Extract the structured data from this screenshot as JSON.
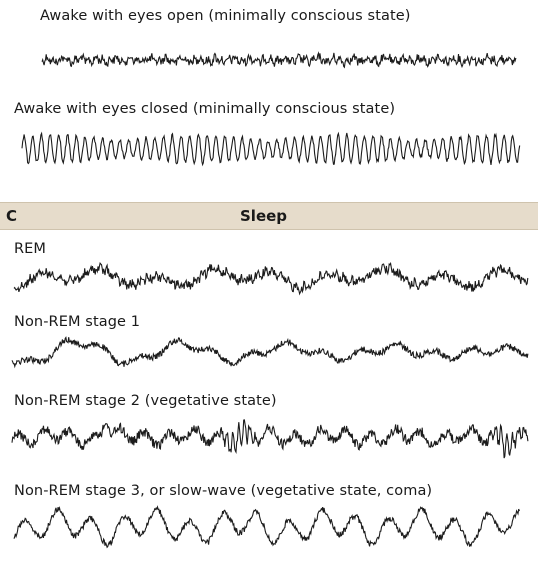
{
  "awake_section": {
    "labels": [
      "Awake with eyes open (minimally conscious state)",
      "Awake with eyes closed (minimally conscious state)"
    ]
  },
  "sleep_panel": {
    "letter": "C",
    "title": "Sleep",
    "labels": [
      "REM",
      "Non-REM stage 1",
      "Non-REM stage 2 (vegetative state)",
      "Non-REM stage 3, or slow-wave (vegetative state, coma)"
    ]
  },
  "colors": {
    "trace": "#1c1c1c",
    "panel_bar": "#e6dccb",
    "background": "#ffffff"
  }
}
